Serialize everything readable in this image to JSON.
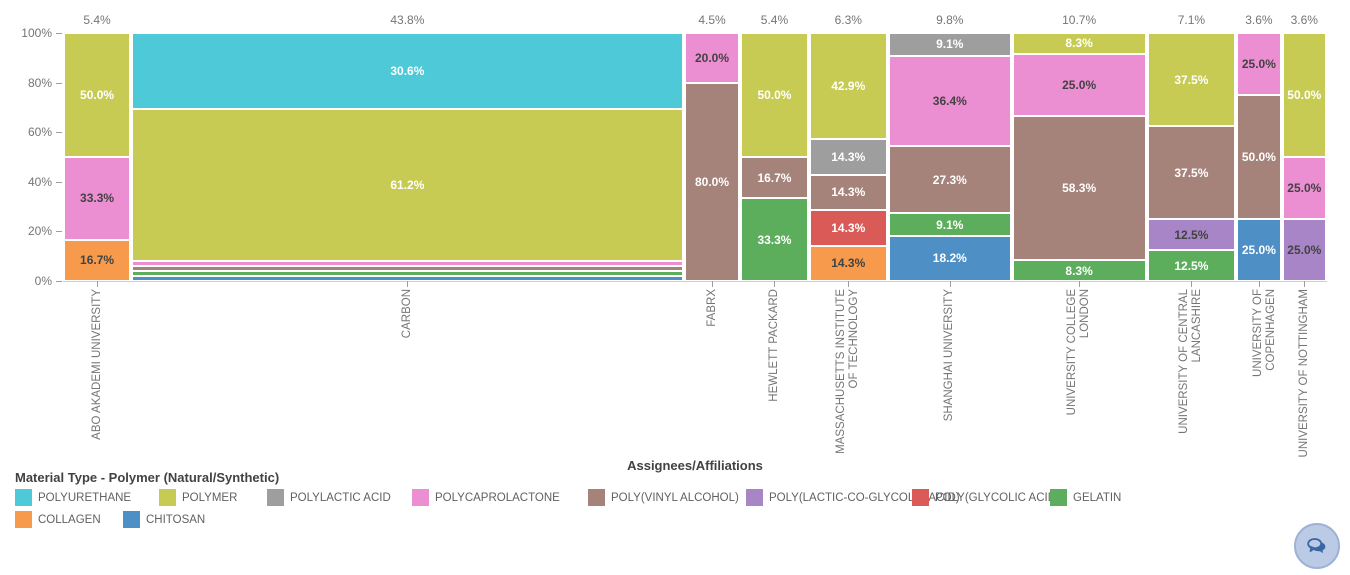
{
  "chart_data": {
    "type": "marimekko",
    "title": "",
    "xlabel": "Assignees/Affiliations",
    "ylabel": "",
    "y_axis": {
      "ticks": [
        "100%",
        "80%",
        "60%",
        "40%",
        "20%",
        "0%"
      ],
      "range": [
        0,
        100
      ],
      "grid": false
    },
    "legend": {
      "title": "Material Type - Polymer (Natural/Synthetic)",
      "position": "bottom-left"
    },
    "materials": [
      {
        "name": "POLYURETHANE",
        "color": "#4ec9d7",
        "label_color": "#ffffff"
      },
      {
        "name": "POLYMER",
        "color": "#c7cb53",
        "label_color": "#ffffff"
      },
      {
        "name": "POLYLACTIC ACID",
        "color": "#9e9e9e",
        "label_color": "#ffffff"
      },
      {
        "name": "POLYCAPROLACTONE",
        "color": "#ec8fd2",
        "label_color": "#424242"
      },
      {
        "name": "POLY(VINYL ALCOHOL)",
        "color": "#a6837a",
        "label_color": "#ffffff"
      },
      {
        "name": "POLY(LACTIC-CO-GLYCOLIC ACID)",
        "color": "#a785c7",
        "label_color": "#424242"
      },
      {
        "name": "POLY(GLYCOLIC ACID)",
        "color": "#d95a57",
        "label_color": "#ffffff"
      },
      {
        "name": "GELATIN",
        "color": "#5cae5c",
        "label_color": "#ffffff"
      },
      {
        "name": "COLLAGEN",
        "color": "#f79a4b",
        "label_color": "#424242"
      },
      {
        "name": "CHITOSAN",
        "color": "#4e90c5",
        "label_color": "#ffffff"
      }
    ],
    "columns": [
      {
        "label": "ABO AKADEMI UNIVERSITY",
        "label_lines": [
          "ABO AKADEMI UNIVERSITY"
        ],
        "width_pct": 5.4,
        "width_label": "5.4%",
        "segments": [
          {
            "material": "POLYMER",
            "value": 50.0,
            "label": "50.0%"
          },
          {
            "material": "POLYCAPROLACTONE",
            "value": 33.3,
            "label": "33.3%"
          },
          {
            "material": "COLLAGEN",
            "value": 16.7,
            "label": "16.7%"
          }
        ]
      },
      {
        "label": "CARBON",
        "label_lines": [
          "CARBON"
        ],
        "width_pct": 43.8,
        "width_label": "43.8%",
        "segments": [
          {
            "material": "POLYURETHANE",
            "value": 30.6,
            "label": "30.6%"
          },
          {
            "material": "POLYMER",
            "value": 61.2,
            "label": "61.2%"
          },
          {
            "material": "POLYCAPROLACTONE",
            "value": 2.0,
            "label": ""
          },
          {
            "material": "POLY(VINYL ALCOHOL)",
            "value": 2.0,
            "label": ""
          },
          {
            "material": "GELATIN",
            "value": 2.0,
            "label": ""
          },
          {
            "material": "CHITOSAN",
            "value": 2.0,
            "label": ""
          }
        ]
      },
      {
        "label": "FABRX",
        "label_lines": [
          "FABRX"
        ],
        "width_pct": 4.5,
        "width_label": "4.5%",
        "segments": [
          {
            "material": "POLYCAPROLACTONE",
            "value": 20.0,
            "label": "20.0%"
          },
          {
            "material": "POLY(VINYL ALCOHOL)",
            "value": 80.0,
            "label": "80.0%"
          }
        ]
      },
      {
        "label": "HEWLETT PACKARD",
        "label_lines": [
          "HEWLETT PACKARD"
        ],
        "width_pct": 5.4,
        "width_label": "5.4%",
        "segments": [
          {
            "material": "POLYMER",
            "value": 50.0,
            "label": "50.0%"
          },
          {
            "material": "POLY(VINYL ALCOHOL)",
            "value": 16.7,
            "label": "16.7%"
          },
          {
            "material": "GELATIN",
            "value": 33.3,
            "label": "33.3%"
          }
        ]
      },
      {
        "label": "MASSACHUSETTS INSTITUTE OF TECHNOLOGY",
        "label_lines": [
          "MASSACHUSETTS INSTITUTE",
          "OF TECHNOLOGY"
        ],
        "width_pct": 6.3,
        "width_label": "6.3%",
        "segments": [
          {
            "material": "POLYMER",
            "value": 42.9,
            "label": "42.9%"
          },
          {
            "material": "POLYLACTIC ACID",
            "value": 14.3,
            "label": "14.3%"
          },
          {
            "material": "POLY(VINYL ALCOHOL)",
            "value": 14.3,
            "label": "14.3%"
          },
          {
            "material": "POLY(GLYCOLIC ACID)",
            "value": 14.3,
            "label": "14.3%"
          },
          {
            "material": "COLLAGEN",
            "value": 14.3,
            "label": "14.3%"
          }
        ]
      },
      {
        "label": "SHANGHAI UNIVERSITY",
        "label_lines": [
          "SHANGHAI UNIVERSITY"
        ],
        "width_pct": 9.8,
        "width_label": "9.8%",
        "segments": [
          {
            "material": "POLYLACTIC ACID",
            "value": 9.1,
            "label": "9.1%"
          },
          {
            "material": "POLYCAPROLACTONE",
            "value": 36.4,
            "label": "36.4%"
          },
          {
            "material": "POLY(VINYL ALCOHOL)",
            "value": 27.3,
            "label": "27.3%"
          },
          {
            "material": "GELATIN",
            "value": 9.1,
            "label": "9.1%"
          },
          {
            "material": "CHITOSAN",
            "value": 18.2,
            "label": "18.2%"
          }
        ]
      },
      {
        "label": "UNIVERSITY COLLEGE LONDON",
        "label_lines": [
          "UNIVERSITY COLLEGE",
          "LONDON"
        ],
        "width_pct": 10.7,
        "width_label": "10.7%",
        "segments": [
          {
            "material": "POLYMER",
            "value": 8.3,
            "label": "8.3%"
          },
          {
            "material": "POLYCAPROLACTONE",
            "value": 25.0,
            "label": "25.0%"
          },
          {
            "material": "POLY(VINYL ALCOHOL)",
            "value": 58.3,
            "label": "58.3%"
          },
          {
            "material": "GELATIN",
            "value": 8.3,
            "label": "8.3%"
          }
        ]
      },
      {
        "label": "UNIVERSITY OF CENTRAL LANCASHIRE",
        "label_lines": [
          "UNIVERSITY OF CENTRAL",
          "LANCASHIRE"
        ],
        "width_pct": 7.1,
        "width_label": "7.1%",
        "segments": [
          {
            "material": "POLYMER",
            "value": 37.5,
            "label": "37.5%"
          },
          {
            "material": "POLY(VINYL ALCOHOL)",
            "value": 37.5,
            "label": "37.5%"
          },
          {
            "material": "POLY(LACTIC-CO-GLYCOLIC ACID)",
            "value": 12.5,
            "label": "12.5%"
          },
          {
            "material": "GELATIN",
            "value": 12.5,
            "label": "12.5%"
          }
        ]
      },
      {
        "label": "UNIVERSITY OF COPENHAGEN",
        "label_lines": [
          "UNIVERSITY OF COPENHAGEN"
        ],
        "width_pct": 3.6,
        "width_label": "3.6%",
        "segments": [
          {
            "material": "POLYCAPROLACTONE",
            "value": 25.0,
            "label": "25.0%"
          },
          {
            "material": "POLY(VINYL ALCOHOL)",
            "value": 50.0,
            "label": "50.0%"
          },
          {
            "material": "CHITOSAN",
            "value": 25.0,
            "label": "25.0%"
          }
        ]
      },
      {
        "label": "UNIVERSITY OF NOTTINGHAM",
        "label_lines": [
          "UNIVERSITY OF NOTTINGHAM"
        ],
        "width_pct": 3.6,
        "width_label": "3.6%",
        "segments": [
          {
            "material": "POLYMER",
            "value": 50.0,
            "label": "50.0%"
          },
          {
            "material": "POLYCAPROLACTONE",
            "value": 25.0,
            "label": "25.0%"
          },
          {
            "material": "POLY(LACTIC-CO-GLYCOLIC ACID)",
            "value": 25.0,
            "label": "25.0%"
          }
        ]
      }
    ]
  },
  "widgets": {
    "chat_button": {
      "icon": "chat-icon"
    }
  }
}
